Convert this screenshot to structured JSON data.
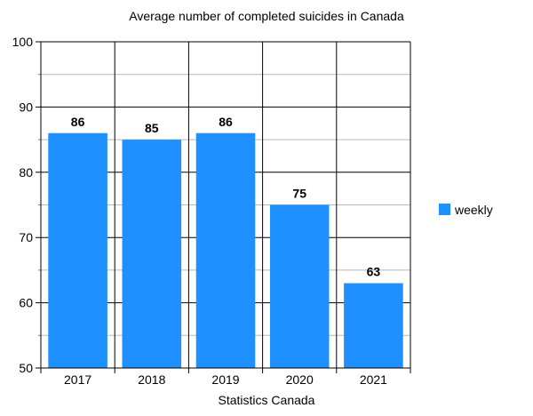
{
  "chart_data": {
    "type": "bar",
    "title": "Average number of completed suicides in Canada",
    "xlabel": "Statistics Canada",
    "ylabel": "",
    "categories": [
      "2017",
      "2018",
      "2019",
      "2020",
      "2021"
    ],
    "series": [
      {
        "name": "weekly",
        "values": [
          86,
          85,
          86,
          75,
          63
        ],
        "color": "#1E90FF"
      }
    ],
    "data_labels": [
      "86",
      "85",
      "86",
      "75",
      "63"
    ],
    "ylim": [
      50,
      100
    ],
    "yticks": [
      50,
      60,
      70,
      80,
      90,
      100
    ],
    "grid": true,
    "legend_position": "right"
  }
}
